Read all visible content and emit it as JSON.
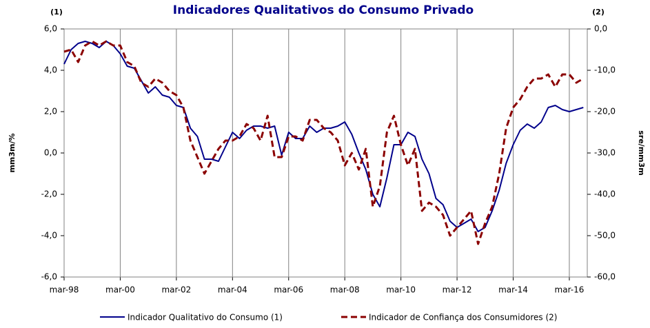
{
  "chart_data": {
    "type": "line",
    "title": "Indicadores Qualitativos do Consumo Privado",
    "annotations": [
      "(1)",
      "(2)"
    ],
    "ylabel": "mm3m/%",
    "y2label": "sre/mm3m",
    "categories": [
      "mar-98",
      null,
      null,
      null,
      null,
      null,
      null,
      null,
      "mar-00",
      null,
      null,
      null,
      null,
      null,
      null,
      null,
      "mar-02",
      null,
      null,
      null,
      null,
      null,
      null,
      null,
      "mar-04",
      null,
      null,
      null,
      null,
      null,
      null,
      null,
      "mar-06",
      null,
      null,
      null,
      null,
      null,
      null,
      null,
      "mar-08",
      null,
      null,
      null,
      null,
      null,
      null,
      null,
      "mar-10",
      null,
      null,
      null,
      null,
      null,
      null,
      null,
      "mar-12",
      null,
      null,
      null,
      null,
      null,
      null,
      null,
      "mar-14",
      null,
      null,
      null,
      null,
      null,
      null,
      null,
      "mar-16",
      null,
      null
    ],
    "ylim": [
      -6,
      6
    ],
    "yticks": [
      {
        "value": -6,
        "label": "-6,0"
      },
      {
        "value": -4,
        "label": "-4,0"
      },
      {
        "value": -2,
        "label": "-2,0"
      },
      {
        "value": 0,
        "label": "0,0"
      },
      {
        "value": 2,
        "label": "2,0"
      },
      {
        "value": 4,
        "label": "4,0"
      },
      {
        "value": 6,
        "label": "6,0"
      }
    ],
    "y2lim": [
      -60,
      0
    ],
    "y2ticks": [
      {
        "value": -60,
        "label": "-60,0"
      },
      {
        "value": -50,
        "label": "-50,0"
      },
      {
        "value": -40,
        "label": "-40,0"
      },
      {
        "value": -30,
        "label": "-30,0"
      },
      {
        "value": -20,
        "label": "-20,0"
      },
      {
        "value": -10,
        "label": "-10,0"
      },
      {
        "value": 0,
        "label": "0,0"
      }
    ],
    "series": [
      {
        "name": "Indicador Qualitativo do Consumo (1)",
        "color": "#00008b",
        "dash": false,
        "values": [
          4.3,
          5.0,
          5.3,
          5.4,
          5.3,
          5.1,
          5.4,
          5.2,
          4.8,
          4.2,
          4.1,
          3.5,
          2.9,
          3.2,
          2.8,
          2.7,
          2.3,
          2.2,
          1.2,
          0.8,
          -0.3,
          -0.3,
          -0.4,
          0.3,
          1.0,
          0.7,
          1.1,
          1.3,
          1.3,
          1.2,
          1.3,
          -0.1,
          1.0,
          0.7,
          0.7,
          1.3,
          1.0,
          1.2,
          1.2,
          1.3,
          1.5,
          0.9,
          0.0,
          -0.8,
          -2.0,
          -2.6,
          -1.2,
          0.4,
          0.4,
          1.0,
          0.8,
          -0.3,
          -1.0,
          -2.2,
          -2.5,
          -3.3,
          -3.6,
          -3.4,
          -3.2,
          -3.8,
          -3.6,
          -2.8,
          -1.8,
          -0.5,
          0.4,
          1.1,
          1.4,
          1.2,
          1.5,
          2.2,
          2.3,
          2.1,
          2.0,
          2.1,
          2.2
        ]
      },
      {
        "name": "Indicador de Confiança dos Consumidores (2)",
        "color": "#8b0000",
        "dash": true,
        "axis": "y2",
        "values": [
          -5.5,
          -5,
          -8,
          -4,
          -3,
          -4,
          -3,
          -4,
          -4,
          -8,
          -9,
          -13,
          -14,
          -12,
          -13,
          -15,
          -16,
          -19,
          -27,
          -31,
          -35,
          -32,
          -29,
          -27,
          -27,
          -26,
          -23,
          -24,
          -27,
          -21,
          -31,
          -31,
          -26,
          -26,
          -27,
          -22,
          -22,
          -24,
          -25,
          -27,
          -33,
          -30,
          -34,
          -29,
          -43,
          -38,
          -25,
          -21,
          -28,
          -33,
          -29,
          -44,
          -42,
          -43,
          -45,
          -50,
          -48,
          -46,
          -44,
          -52,
          -47,
          -43,
          -35,
          -24,
          -19,
          -17,
          -14,
          -12,
          -12,
          -11,
          -14,
          -11,
          -11,
          -13,
          -12
        ]
      }
    ],
    "grid": true
  }
}
